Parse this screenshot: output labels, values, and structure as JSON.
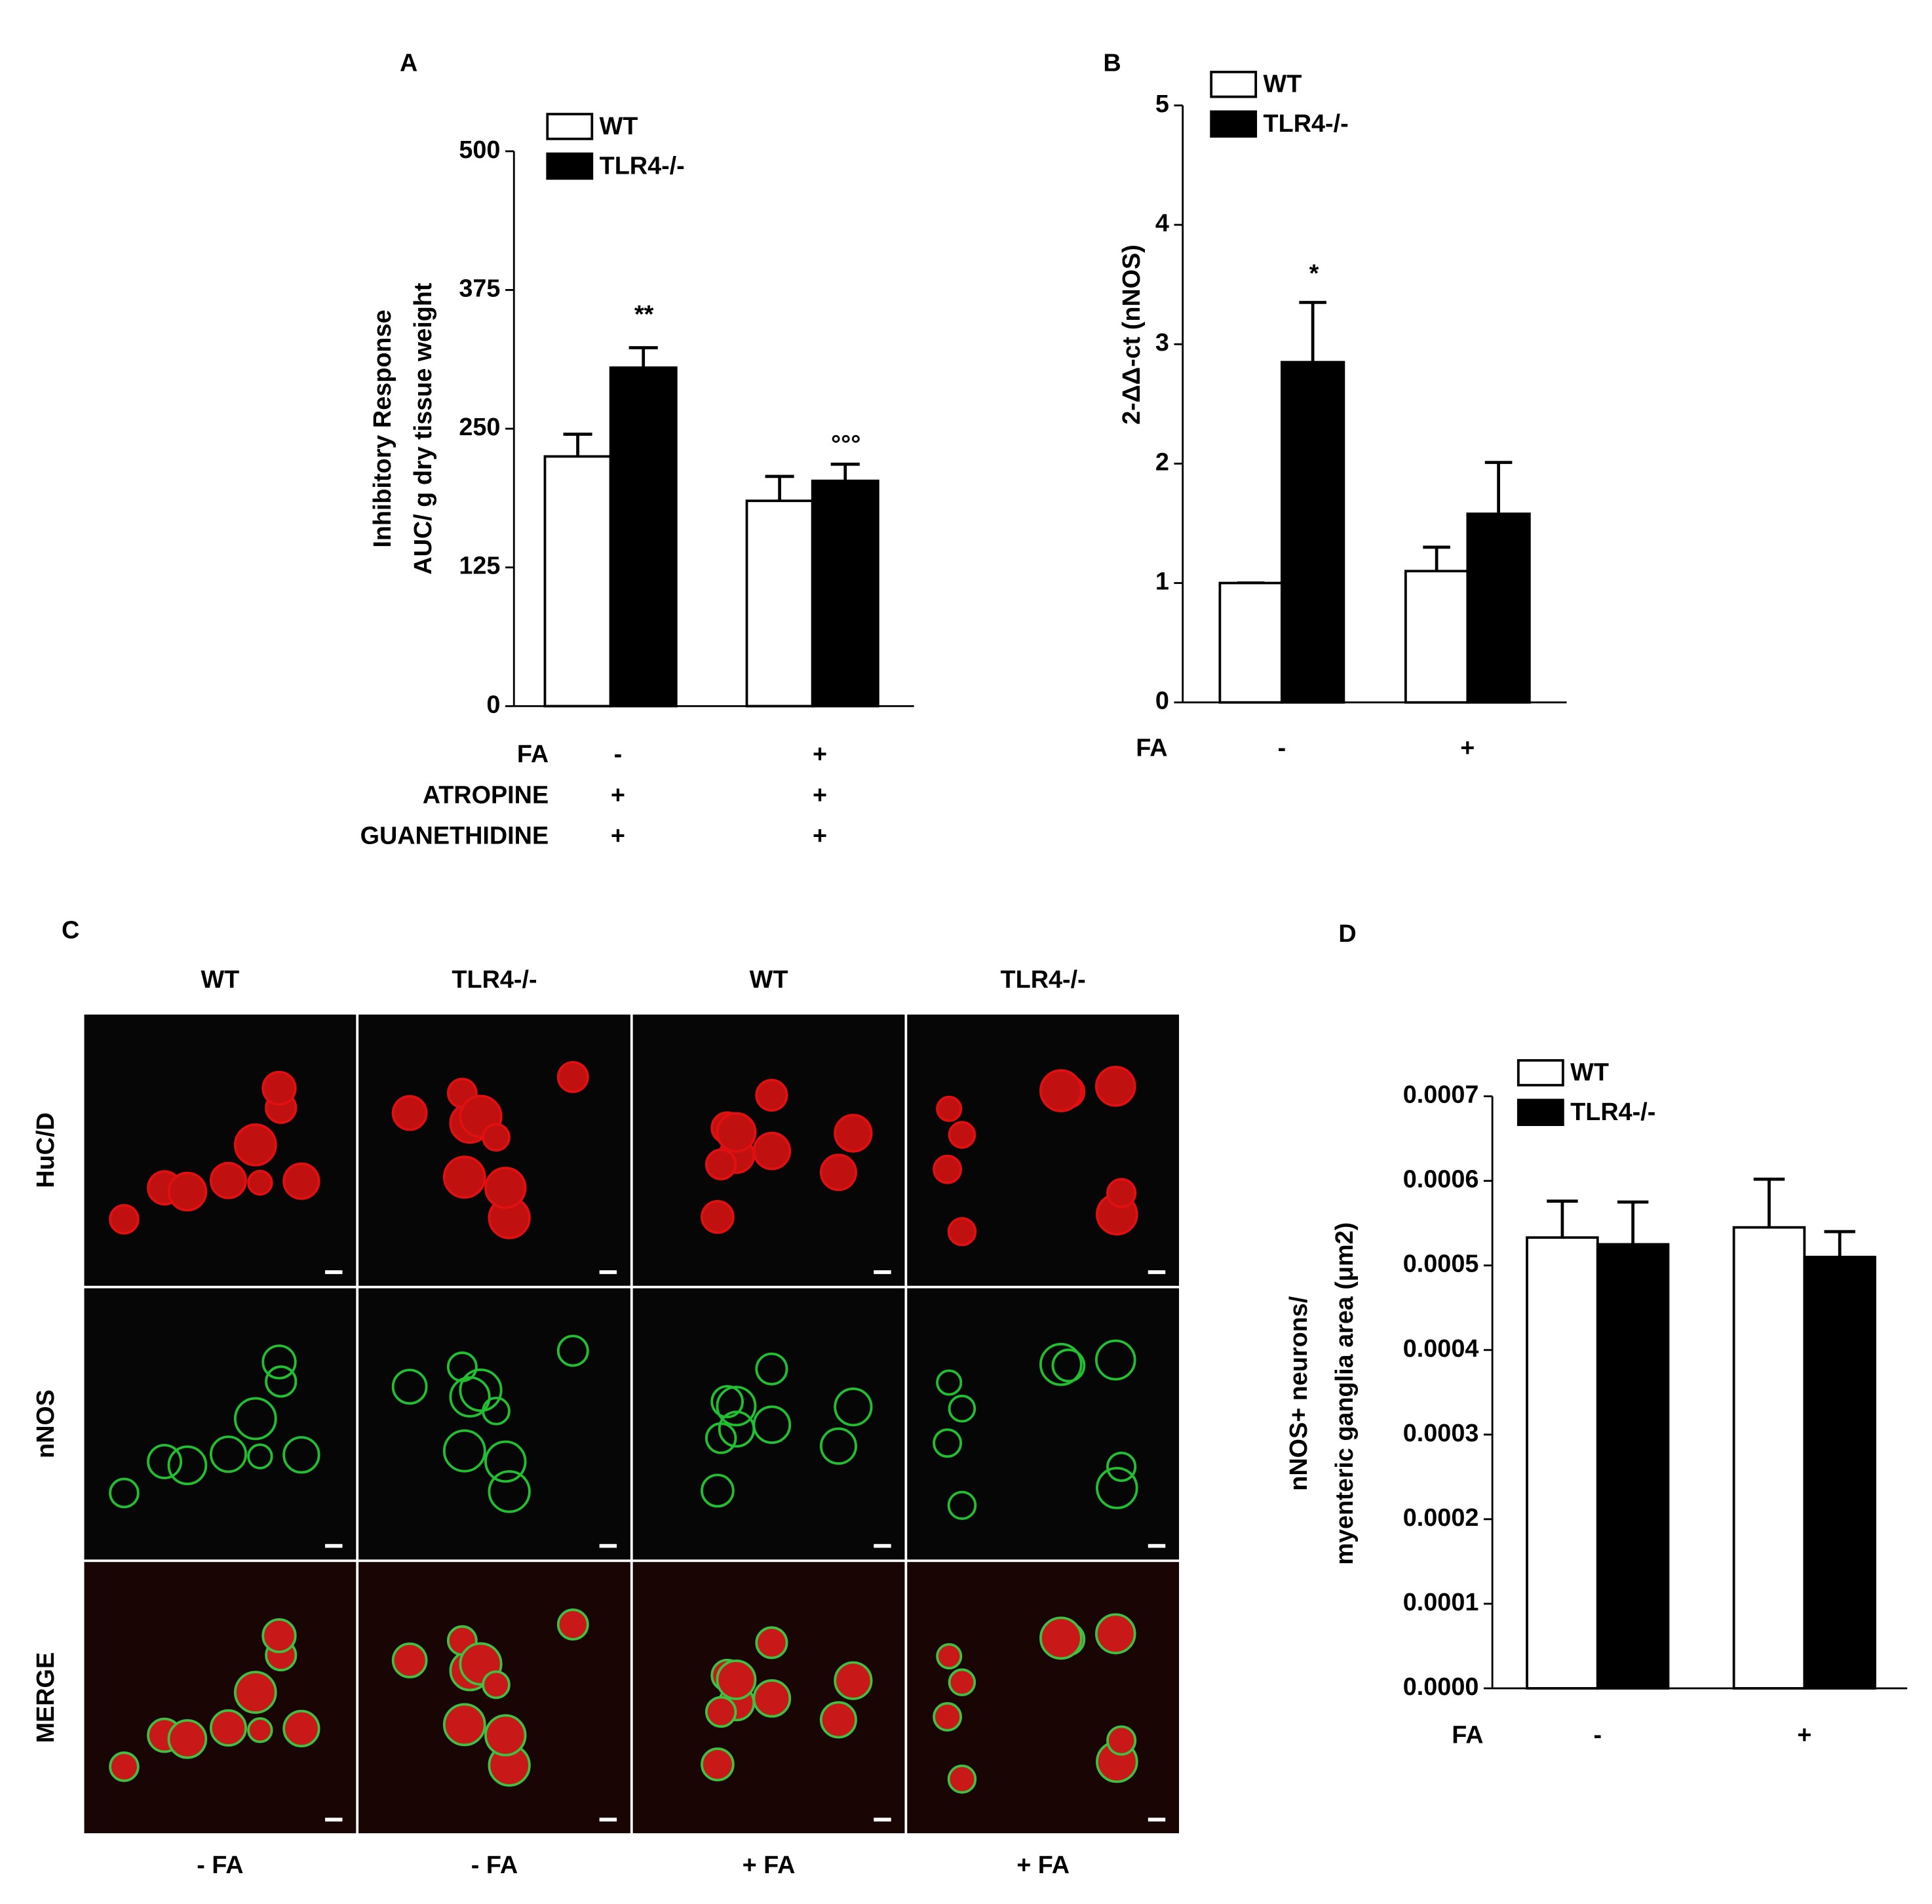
{
  "chart_data": [
    {
      "type": "bar",
      "panel_label": "A",
      "y_label": [
        "Inhibitory Response",
        "AUC/ g dry tissue weight"
      ],
      "ylim": [
        0,
        500
      ],
      "yticks": [
        0,
        125,
        250,
        375,
        500
      ],
      "conditions": [
        {
          "name": "FA",
          "values": [
            "-",
            "+"
          ]
        },
        {
          "name": "ATROPINE",
          "values": [
            "+",
            "+"
          ]
        },
        {
          "name": "GUANETHIDINE",
          "values": [
            "+",
            "+"
          ]
        }
      ],
      "series": [
        {
          "name": "WT",
          "color": "#ffffff",
          "values": [
            225,
            185
          ],
          "errors": [
            20,
            22
          ]
        },
        {
          "name": "TLR4-/-",
          "color": "#000000",
          "values": [
            305,
            203
          ],
          "errors": [
            18,
            15
          ]
        }
      ],
      "annotations": [
        "**",
        "°°°"
      ]
    },
    {
      "type": "bar",
      "panel_label": "B",
      "y_label": [
        "2-ΔΔ-ct (nNOS)"
      ],
      "ylim": [
        0,
        5
      ],
      "yticks": [
        0,
        1,
        2,
        3,
        4,
        5
      ],
      "x_label": "FA",
      "categories": [
        "-",
        "+"
      ],
      "series": [
        {
          "name": "WT",
          "color": "#ffffff",
          "values": [
            1,
            1.1
          ],
          "errors": [
            0,
            0.2
          ]
        },
        {
          "name": "TLR4-/-",
          "color": "#000000",
          "values": [
            2.85,
            1.58
          ],
          "errors": [
            0.5,
            0.43
          ]
        }
      ],
      "annotations": [
        "*"
      ]
    },
    {
      "type": "bar",
      "panel_label": "D",
      "y_label": [
        "nNOS+ neurons/",
        "myenteric ganglia area (μm2)"
      ],
      "ylim": [
        0,
        0.0007
      ],
      "yticks": [
        {
          "value": 0,
          "label": "0.0000"
        },
        {
          "value": 0.0001,
          "label": "0.0001"
        },
        {
          "value": 0.0002,
          "label": "0.0002"
        },
        {
          "value": 0.0003,
          "label": "0.0003"
        },
        {
          "value": 0.0004,
          "label": "0.0004"
        },
        {
          "value": 0.0005,
          "label": "0.0005"
        },
        {
          "value": 0.0006,
          "label": "0.0006"
        },
        {
          "value": 0.0007,
          "label": "0.0007"
        }
      ],
      "x_label": "FA",
      "categories": [
        "-",
        "+"
      ],
      "series": [
        {
          "name": "WT",
          "color": "#ffffff",
          "values": [
            0.000533,
            0.000545
          ],
          "errors": [
            4.3e-05,
            5.7e-05
          ]
        },
        {
          "name": "TLR4-/-",
          "color": "#000000",
          "values": [
            0.000525,
            0.00051
          ],
          "errors": [
            5e-05,
            3e-05
          ]
        }
      ],
      "annotations": []
    }
  ],
  "panel_c": {
    "panel_label": "C",
    "columns": [
      "WT",
      "TLR4-/-",
      "WT",
      "TLR4-/-"
    ],
    "rows": [
      "HuC/D",
      "nNOS",
      "MERGE"
    ],
    "footer": [
      "- FA",
      "- FA",
      "+ FA",
      "+ FA"
    ]
  }
}
